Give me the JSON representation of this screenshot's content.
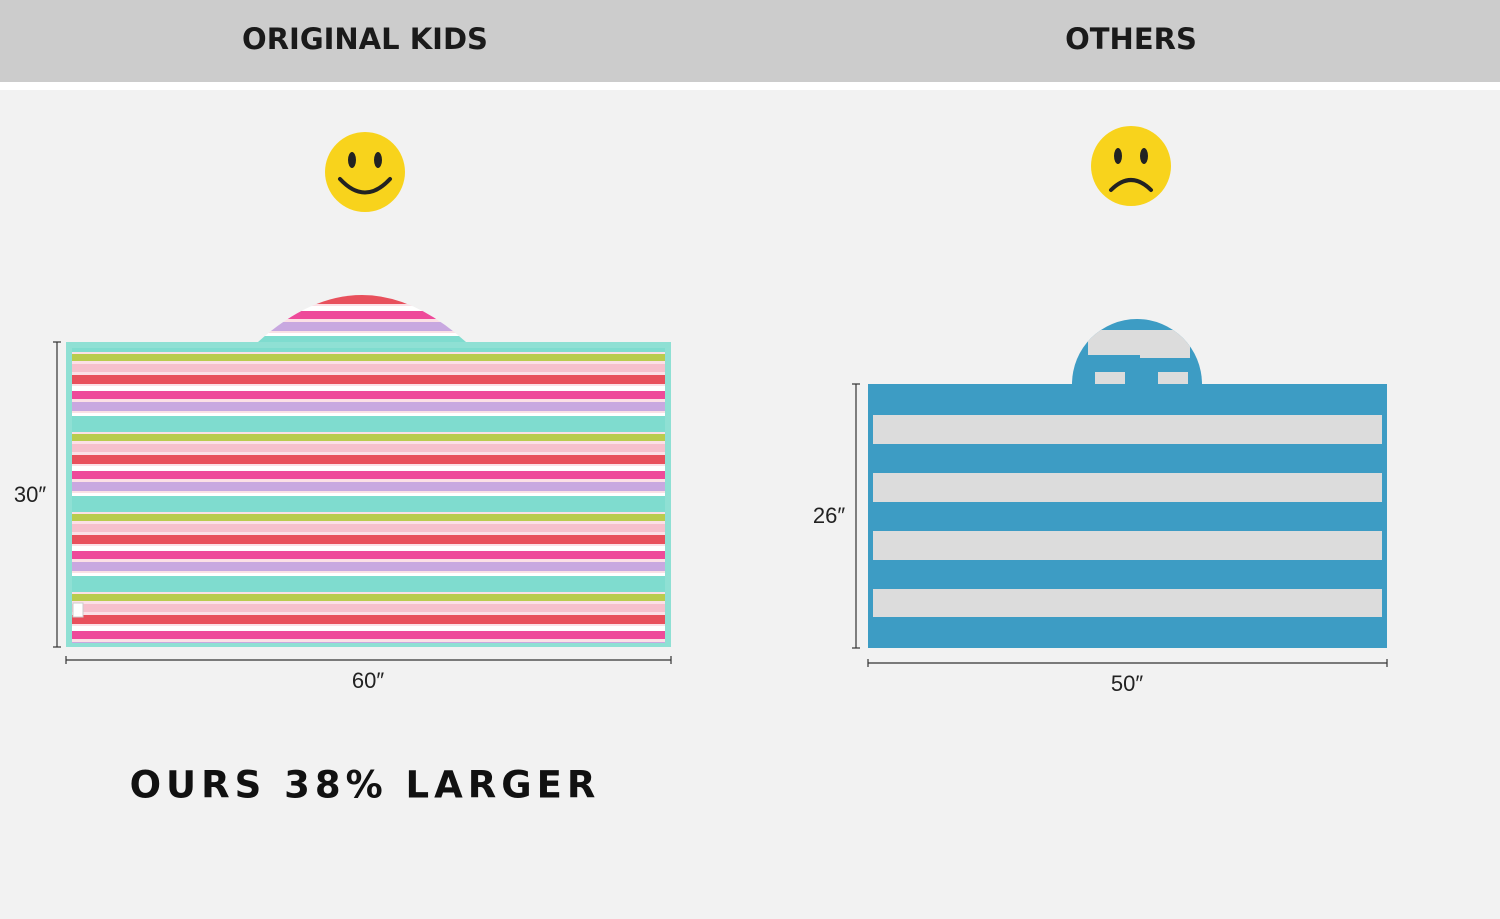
{
  "header": {
    "left": "ORIGINAL KIDS",
    "right": "OTHERS"
  },
  "left": {
    "height": "30″",
    "width": "60″"
  },
  "right": {
    "height": "26″",
    "width": "50″"
  },
  "tagline": "OURS 38% LARGER"
}
